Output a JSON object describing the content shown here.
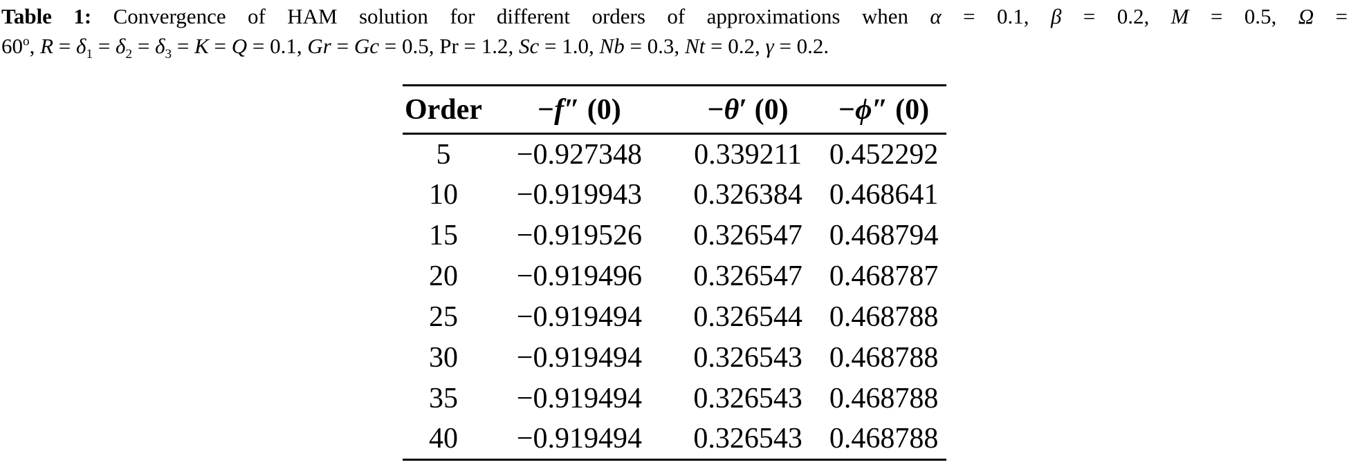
{
  "caption": {
    "line1": [
      {
        "t": "Table 1: ",
        "s": "b"
      },
      {
        "t": "Convergence of HAM solution for different orders of approximations when ",
        "s": "n"
      },
      {
        "t": "α",
        "s": "i"
      },
      {
        "t": " = 0.1, ",
        "s": "n"
      },
      {
        "t": "β",
        "s": "i"
      },
      {
        "t": " = 0.2, ",
        "s": "n"
      },
      {
        "t": "M",
        "s": "i"
      },
      {
        "t": " = 0.5, ",
        "s": "n"
      },
      {
        "t": "Ω",
        "s": "i"
      },
      {
        "t": " =",
        "s": "n"
      }
    ],
    "line2": [
      {
        "t": "60",
        "s": "n"
      },
      {
        "t": "o",
        "s": "sup"
      },
      {
        "t": ", ",
        "s": "n"
      },
      {
        "t": "R",
        "s": "i"
      },
      {
        "t": " = ",
        "s": "n"
      },
      {
        "t": "δ",
        "s": "i"
      },
      {
        "t": "1",
        "s": "sub"
      },
      {
        "t": " = ",
        "s": "n"
      },
      {
        "t": "δ",
        "s": "i"
      },
      {
        "t": "2",
        "s": "sub"
      },
      {
        "t": " = ",
        "s": "n"
      },
      {
        "t": "δ",
        "s": "i"
      },
      {
        "t": "3",
        "s": "sub"
      },
      {
        "t": " = ",
        "s": "n"
      },
      {
        "t": "K",
        "s": "i"
      },
      {
        "t": " = ",
        "s": "n"
      },
      {
        "t": "Q",
        "s": "i"
      },
      {
        "t": " = 0.1, ",
        "s": "n"
      },
      {
        "t": "Gr",
        "s": "i"
      },
      {
        "t": " = ",
        "s": "n"
      },
      {
        "t": "Gc",
        "s": "i"
      },
      {
        "t": " = 0.5, ",
        "s": "n"
      },
      {
        "t": "Pr",
        "s": "n"
      },
      {
        "t": " = 1.2, ",
        "s": "n"
      },
      {
        "t": "Sc",
        "s": "i"
      },
      {
        "t": " = 1.0, ",
        "s": "n"
      },
      {
        "t": "Nb",
        "s": "i"
      },
      {
        "t": " = 0.3, ",
        "s": "n"
      },
      {
        "t": "Nt",
        "s": "i"
      },
      {
        "t": " = 0.2, ",
        "s": "n"
      },
      {
        "t": "γ",
        "s": "i"
      },
      {
        "t": " = 0.2.",
        "s": "n"
      }
    ]
  },
  "table": {
    "header": [
      {
        "segments": [
          {
            "t": "Order",
            "s": "n"
          }
        ]
      },
      {
        "segments": [
          {
            "t": "−",
            "s": "n"
          },
          {
            "t": "f",
            "s": "i"
          },
          {
            "t": "″",
            "s": "n"
          },
          {
            "t": " (0)",
            "s": "n"
          }
        ]
      },
      {
        "segments": [
          {
            "t": "−",
            "s": "n"
          },
          {
            "t": "θ",
            "s": "i"
          },
          {
            "t": "′",
            "s": "n"
          },
          {
            "t": " (0)",
            "s": "n"
          }
        ]
      },
      {
        "segments": [
          {
            "t": "−",
            "s": "n"
          },
          {
            "t": "ϕ",
            "s": "i"
          },
          {
            "t": "″",
            "s": "n"
          },
          {
            "t": " (0)",
            "s": "n"
          }
        ]
      }
    ],
    "rows": [
      [
        "5",
        "−0.927348",
        "0.339211",
        "0.452292"
      ],
      [
        "10",
        "−0.919943",
        "0.326384",
        "0.468641"
      ],
      [
        "15",
        "−0.919526",
        "0.326547",
        "0.468794"
      ],
      [
        "20",
        "−0.919496",
        "0.326547",
        "0.468787"
      ],
      [
        "25",
        "−0.919494",
        "0.326544",
        "0.468788"
      ],
      [
        "30",
        "−0.919494",
        "0.326543",
        "0.468788"
      ],
      [
        "35",
        "−0.919494",
        "0.326543",
        "0.468788"
      ],
      [
        "40",
        "−0.919494",
        "0.326543",
        "0.468788"
      ]
    ]
  },
  "chart_data": {
    "type": "table",
    "title": "Table 1: Convergence of HAM solution for different orders of approximations",
    "columns": [
      "Order",
      "−f″(0)",
      "−θ′(0)",
      "−ϕ″(0)"
    ],
    "rows": [
      [
        5,
        -0.927348,
        0.339211,
        0.452292
      ],
      [
        10,
        -0.919943,
        0.326384,
        0.468641
      ],
      [
        15,
        -0.919526,
        0.326547,
        0.468794
      ],
      [
        20,
        -0.919496,
        0.326547,
        0.468787
      ],
      [
        25,
        -0.919494,
        0.326544,
        0.468788
      ],
      [
        30,
        -0.919494,
        0.326543,
        0.468788
      ],
      [
        35,
        -0.919494,
        0.326543,
        0.468788
      ],
      [
        40,
        -0.919494,
        0.326543,
        0.468788
      ]
    ],
    "parameters": "α = 0.1, β = 0.2, M = 0.5, Ω = 60°, R = δ1 = δ2 = δ3 = K = Q = 0.1, Gr = Gc = 0.5, Pr = 1.2, Sc = 1.0, Nb = 0.3, Nt = 0.2, γ = 0.2."
  },
  "colors": {
    "background": "#ffffff",
    "text": "#000000",
    "rule": "#000000"
  }
}
